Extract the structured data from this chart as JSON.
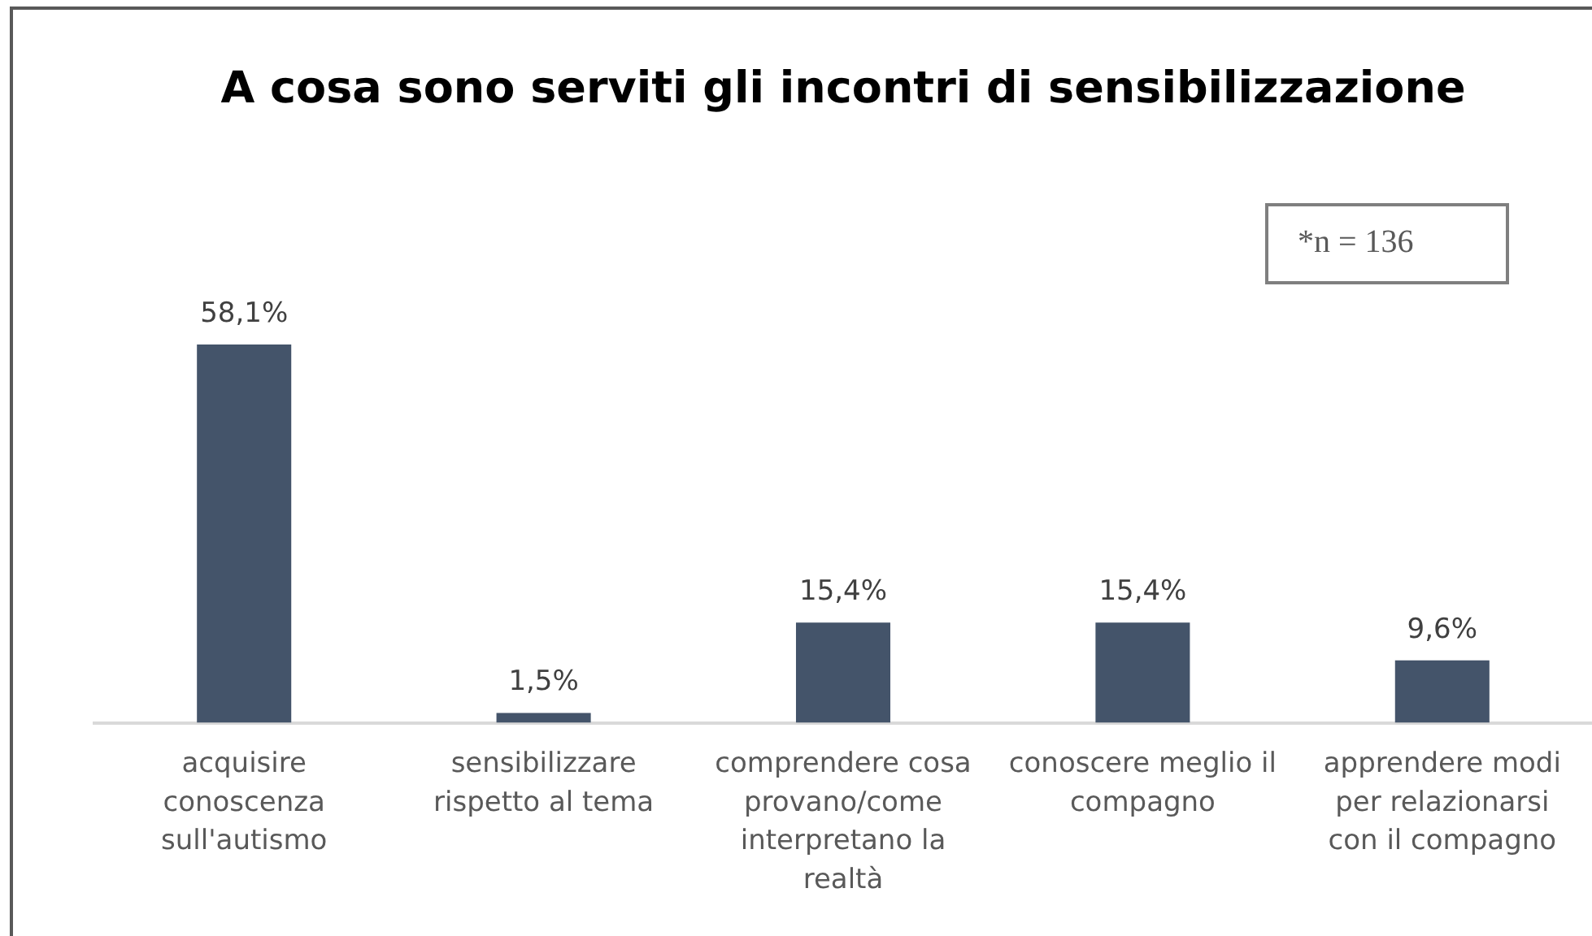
{
  "chart_data": {
    "type": "bar",
    "title": "A cosa sono serviti gli incontri di sensibilizzazione",
    "categories": [
      "acquisire conoscenza sull'autismo",
      "sensibilizzare rispetto al tema",
      "comprendere cosa provano/come interpretano la realtà",
      "conoscere meglio il compagno",
      "apprendere modi per relazionarsi con il compagno"
    ],
    "values": [
      58.1,
      1.5,
      15.4,
      15.4,
      9.6
    ],
    "value_labels": [
      "58,1%",
      "1,5%",
      "15,4%",
      "15,4%",
      "9,6%"
    ],
    "color": "#44546a",
    "annotations": [
      "*n = 136"
    ],
    "grid": false,
    "legend": false
  }
}
